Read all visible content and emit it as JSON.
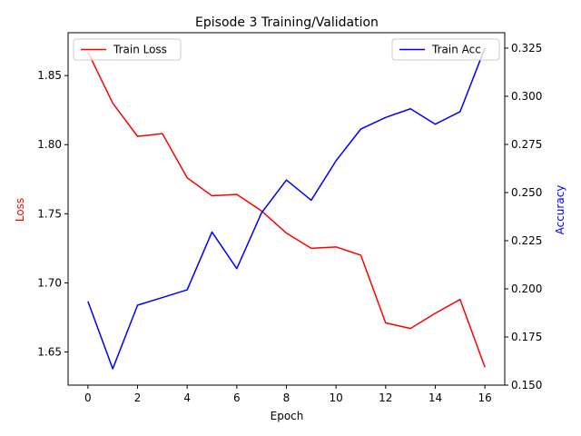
{
  "chart_data": {
    "type": "line",
    "title": "Episode 3 Training/Validation",
    "xlabel": "Epoch",
    "ylabel_left": "Loss",
    "ylabel_right": "Accuracy",
    "x": [
      0,
      1,
      2,
      3,
      4,
      5,
      6,
      7,
      8,
      9,
      10,
      11,
      12,
      13,
      14,
      15,
      16
    ],
    "xticks": [
      "0",
      "2",
      "4",
      "6",
      "8",
      "10",
      "12",
      "14",
      "16"
    ],
    "xlim": [
      -0.8,
      16.8
    ],
    "ylim_left": [
      1.626,
      1.881
    ],
    "ylim_right": [
      0.15,
      0.333
    ],
    "yticks_left": [
      "1.65",
      "1.70",
      "1.75",
      "1.80",
      "1.85"
    ],
    "yticks_right": [
      "0.150",
      "0.175",
      "0.200",
      "0.225",
      "0.250",
      "0.275",
      "0.300",
      "0.325"
    ],
    "grid": false,
    "series": [
      {
        "name": "Train Loss",
        "axis": "left",
        "color": "#ff0000",
        "legend_loc": "upper-left",
        "values": [
          1.867,
          1.83,
          1.806,
          1.808,
          1.776,
          1.763,
          1.764,
          1.752,
          1.736,
          1.725,
          1.726,
          1.72,
          1.671,
          1.667,
          1.678,
          1.688,
          1.639
        ]
      },
      {
        "name": "Train Acc",
        "axis": "right",
        "color": "#0000ff",
        "legend_loc": "upper-right",
        "values": [
          0.1935,
          0.1585,
          0.1915,
          0.1955,
          0.1995,
          0.2295,
          0.2105,
          0.2395,
          0.2565,
          0.246,
          0.2665,
          0.283,
          0.289,
          0.2935,
          0.2855,
          0.292,
          0.325
        ]
      }
    ]
  }
}
